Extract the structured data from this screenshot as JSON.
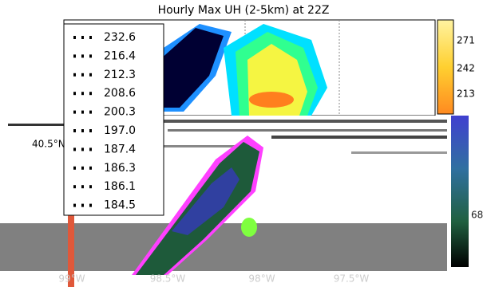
{
  "title": "Hourly Max UH (2-5km) at 22Z",
  "legend": {
    "entries": [
      "232.6",
      "216.4",
      "212.3",
      "208.6",
      "200.3",
      "197.0",
      "187.4",
      "186.3",
      "186.1",
      "184.5"
    ]
  },
  "colorbar": {
    "upper_ticks": [
      "271",
      "242",
      "213"
    ],
    "lower_ticks": [
      "68"
    ]
  },
  "axes": {
    "x_labels": [
      "99°W",
      "98.5°W",
      "98°W",
      "97.5°W"
    ],
    "y_labels": [
      "40.5°N"
    ]
  }
}
